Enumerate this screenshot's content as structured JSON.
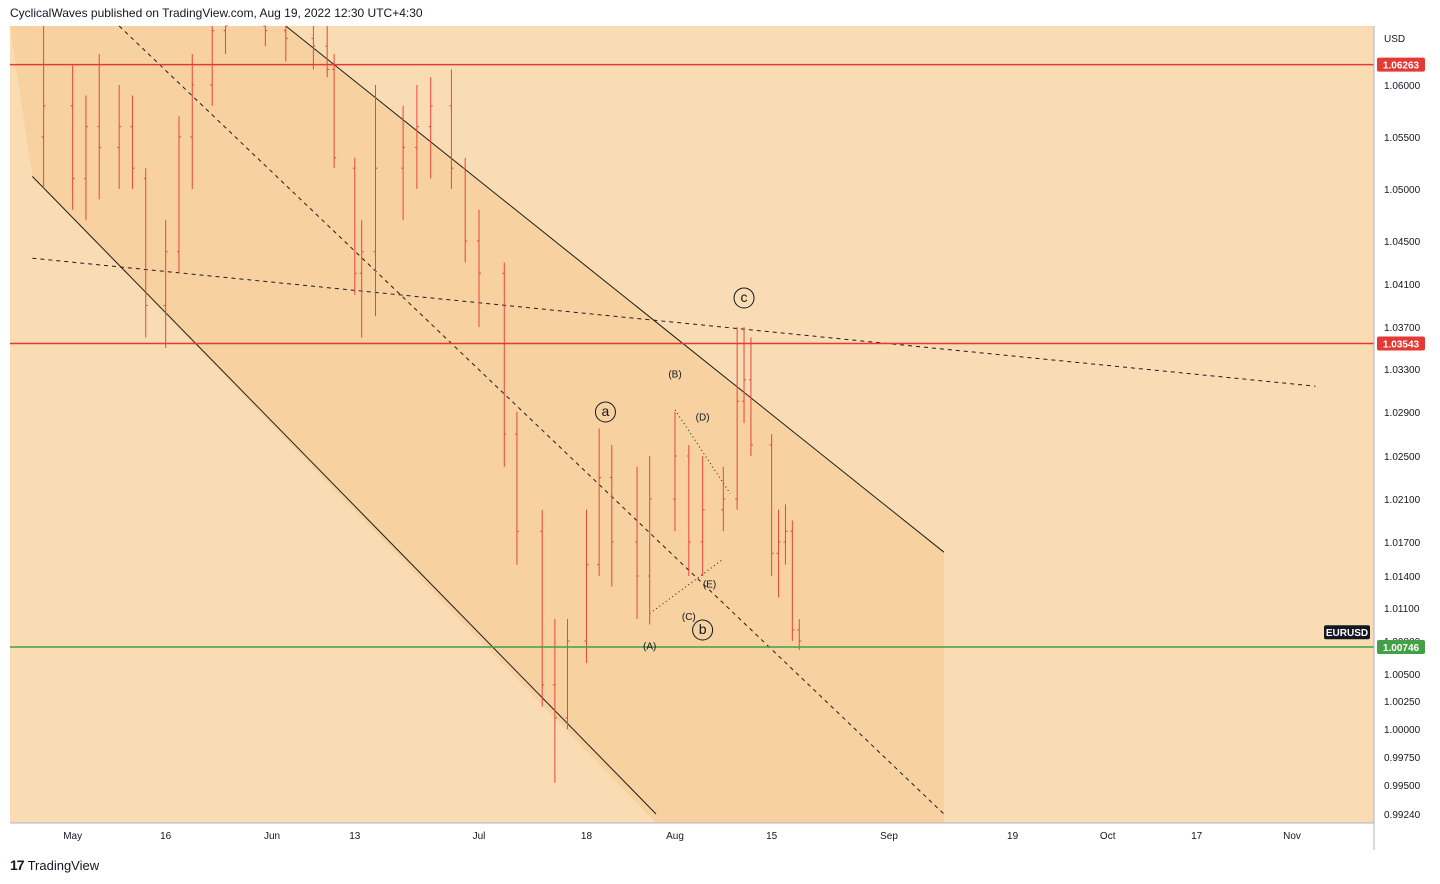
{
  "header": {
    "text": "CyclicalWaves published on TradingView.com, Aug 19, 2022 12:30 UTC+4:30"
  },
  "footer": {
    "logo": "17",
    "brand": "TradingView"
  },
  "colors": {
    "background": "#f9dcb3",
    "channel_fill": "#f6c98f",
    "candle": "#e8453c",
    "resistance": "#e53935",
    "support": "#43a047",
    "symbol_tag": "#131722"
  },
  "chart_data": {
    "type": "candlestick",
    "symbol": "EURUSD",
    "currency": "USD",
    "ylim": [
      0.9924,
      1.0676
    ],
    "grid": false,
    "x_ticks": [
      {
        "label": "May",
        "date": "2022-05-02"
      },
      {
        "label": "16",
        "date": "2022-05-16"
      },
      {
        "label": "Jun",
        "date": "2022-06-01"
      },
      {
        "label": "13",
        "date": "2022-06-13"
      },
      {
        "label": "Jul",
        "date": "2022-07-01"
      },
      {
        "label": "18",
        "date": "2022-07-18"
      },
      {
        "label": "Aug",
        "date": "2022-08-01"
      },
      {
        "label": "15",
        "date": "2022-08-15"
      },
      {
        "label": "Sep",
        "date": "2022-09-01"
      },
      {
        "label": "19",
        "date": "2022-09-19"
      },
      {
        "label": "Oct",
        "date": "2022-10-03"
      },
      {
        "label": "17",
        "date": "2022-10-17"
      },
      {
        "label": "Nov",
        "date": "2022-11-01"
      }
    ],
    "y_ticks": [
      "1.06000",
      "1.05500",
      "1.05000",
      "1.04500",
      "1.04100",
      "1.03700",
      "1.03300",
      "1.02900",
      "1.02500",
      "1.02100",
      "1.01700",
      "1.01400",
      "1.01100",
      "1.00500",
      "1.00250",
      "1.00000",
      "0.99750",
      "0.99500",
      "0.99240"
    ],
    "horizontal_levels": [
      {
        "value": 1.06263,
        "label": "1.06263",
        "color": "#e53935"
      },
      {
        "value": 1.03543,
        "label": "1.03543",
        "color": "#e53935"
      },
      {
        "value": 1.00746,
        "label": "1.00746",
        "color": "#43a047"
      }
    ],
    "partial_tick": "1.00800",
    "waves": [
      {
        "label": "c",
        "circled": true,
        "date": "2022-08-11",
        "price": 1.0397
      },
      {
        "label": "a",
        "circled": true,
        "date": "2022-07-21",
        "price": 1.029
      },
      {
        "label": "b",
        "circled": true,
        "date": "2022-08-05",
        "price": 1.009
      },
      {
        "label": "(A)",
        "circled": false,
        "date": "2022-07-28",
        "price": 1.0075
      },
      {
        "label": "(B)",
        "circled": false,
        "date": "2022-08-01",
        "price": 1.0325
      },
      {
        "label": "(C)",
        "circled": false,
        "date": "2022-08-03",
        "price": 1.0102
      },
      {
        "label": "(D)",
        "circled": false,
        "date": "2022-08-05",
        "price": 1.0285
      },
      {
        "label": "(E)",
        "circled": false,
        "date": "2022-08-06",
        "price": 1.0132
      }
    ],
    "channel_lines": [
      {
        "from": {
          "date": "2022-04-28",
          "price": 1.0512
        },
        "to": {
          "date": "2022-07-29",
          "price": 0.9924
        }
      },
      {
        "from": {
          "date": "2022-06-03",
          "price": 1.0676
        },
        "to": {
          "date": "2022-09-09",
          "price": 1.0161
        }
      }
    ],
    "dashed_lines": [
      {
        "from": {
          "date": "2022-05-09",
          "price": 1.0676
        },
        "to": {
          "date": "2022-09-09",
          "price": 0.9924
        }
      },
      {
        "from": {
          "date": "2022-04-28",
          "price": 1.0434
        },
        "to": {
          "date": "2022-11-05",
          "price": 1.0314
        }
      }
    ],
    "candles": [
      {
        "date": "2022-04-29",
        "open": 1.055,
        "high": 1.0676,
        "low": 1.05,
        "close": 1.058
      },
      {
        "date": "2022-05-02",
        "open": 1.058,
        "high": 1.0625,
        "low": 1.048,
        "close": 1.051
      },
      {
        "date": "2022-05-04",
        "open": 1.051,
        "high": 1.059,
        "low": 1.047,
        "close": 1.056
      },
      {
        "date": "2022-05-06",
        "open": 1.056,
        "high": 1.064,
        "low": 1.049,
        "close": 1.054
      },
      {
        "date": "2022-05-09",
        "open": 1.054,
        "high": 1.06,
        "low": 1.05,
        "close": 1.056
      },
      {
        "date": "2022-05-11",
        "open": 1.056,
        "high": 1.059,
        "low": 1.05,
        "close": 1.052
      },
      {
        "date": "2022-05-13",
        "open": 1.051,
        "high": 1.052,
        "low": 1.036,
        "close": 1.039
      },
      {
        "date": "2022-05-16",
        "open": 1.039,
        "high": 1.047,
        "low": 1.035,
        "close": 1.044
      },
      {
        "date": "2022-05-18",
        "open": 1.044,
        "high": 1.057,
        "low": 1.042,
        "close": 1.055
      },
      {
        "date": "2022-05-20",
        "open": 1.055,
        "high": 1.064,
        "low": 1.05,
        "close": 1.06
      },
      {
        "date": "2022-05-23",
        "open": 1.06,
        "high": 1.0676,
        "low": 1.058,
        "close": 1.067
      },
      {
        "date": "2022-05-25",
        "open": 1.067,
        "high": 1.0676,
        "low": 1.064,
        "close": 1.0676
      },
      {
        "date": "2022-05-31",
        "open": 1.0676,
        "high": 1.0676,
        "low": 1.065,
        "close": 1.067
      },
      {
        "date": "2022-06-03",
        "open": 1.067,
        "high": 1.0676,
        "low": 1.063,
        "close": 1.066
      },
      {
        "date": "2022-06-07",
        "open": 1.066,
        "high": 1.0676,
        "low": 1.062,
        "close": 1.065
      },
      {
        "date": "2022-06-09",
        "open": 1.065,
        "high": 1.0676,
        "low": 1.061,
        "close": 1.062
      },
      {
        "date": "2022-06-10",
        "open": 1.062,
        "high": 1.064,
        "low": 1.052,
        "close": 1.053
      },
      {
        "date": "2022-06-13",
        "open": 1.052,
        "high": 1.053,
        "low": 1.04,
        "close": 1.042
      },
      {
        "date": "2022-06-14",
        "open": 1.042,
        "high": 1.047,
        "low": 1.036,
        "close": 1.044
      },
      {
        "date": "2022-06-16",
        "open": 1.044,
        "high": 1.06,
        "low": 1.038,
        "close": 1.052
      },
      {
        "date": "2022-06-20",
        "open": 1.052,
        "high": 1.058,
        "low": 1.047,
        "close": 1.054
      },
      {
        "date": "2022-06-22",
        "open": 1.054,
        "high": 1.06,
        "low": 1.05,
        "close": 1.056
      },
      {
        "date": "2022-06-24",
        "open": 1.056,
        "high": 1.061,
        "low": 1.051,
        "close": 1.058
      },
      {
        "date": "2022-06-27",
        "open": 1.058,
        "high": 1.062,
        "low": 1.05,
        "close": 1.052
      },
      {
        "date": "2022-06-29",
        "open": 1.052,
        "high": 1.053,
        "low": 1.043,
        "close": 1.045
      },
      {
        "date": "2022-07-01",
        "open": 1.045,
        "high": 1.048,
        "low": 1.037,
        "close": 1.042
      },
      {
        "date": "2022-07-05",
        "open": 1.042,
        "high": 1.043,
        "low": 1.024,
        "close": 1.027
      },
      {
        "date": "2022-07-07",
        "open": 1.027,
        "high": 1.029,
        "low": 1.015,
        "close": 1.018
      },
      {
        "date": "2022-07-11",
        "open": 1.018,
        "high": 1.02,
        "low": 1.002,
        "close": 1.004
      },
      {
        "date": "2022-07-13",
        "open": 1.004,
        "high": 1.01,
        "low": 0.9952,
        "close": 1.001
      },
      {
        "date": "2022-07-15",
        "open": 1.001,
        "high": 1.01,
        "low": 1.0,
        "close": 1.008
      },
      {
        "date": "2022-07-18",
        "open": 1.008,
        "high": 1.02,
        "low": 1.006,
        "close": 1.015
      },
      {
        "date": "2022-07-20",
        "open": 1.015,
        "high": 1.0275,
        "low": 1.014,
        "close": 1.023
      },
      {
        "date": "2022-07-22",
        "open": 1.023,
        "high": 1.026,
        "low": 1.013,
        "close": 1.017
      },
      {
        "date": "2022-07-26",
        "open": 1.017,
        "high": 1.024,
        "low": 1.01,
        "close": 1.014
      },
      {
        "date": "2022-07-28",
        "open": 1.014,
        "high": 1.025,
        "low": 1.0095,
        "close": 1.021
      },
      {
        "date": "2022-08-01",
        "open": 1.021,
        "high": 1.029,
        "low": 1.018,
        "close": 1.025
      },
      {
        "date": "2022-08-03",
        "open": 1.025,
        "high": 1.026,
        "low": 1.014,
        "close": 1.017
      },
      {
        "date": "2022-08-05",
        "open": 1.017,
        "high": 1.025,
        "low": 1.014,
        "close": 1.02
      },
      {
        "date": "2022-08-08",
        "open": 1.02,
        "high": 1.024,
        "low": 1.018,
        "close": 1.021
      },
      {
        "date": "2022-08-10",
        "open": 1.021,
        "high": 1.037,
        "low": 1.02,
        "close": 1.03
      },
      {
        "date": "2022-08-11",
        "open": 1.03,
        "high": 1.037,
        "low": 1.028,
        "close": 1.032
      },
      {
        "date": "2022-08-12",
        "open": 1.032,
        "high": 1.036,
        "low": 1.025,
        "close": 1.026
      },
      {
        "date": "2022-08-15",
        "open": 1.026,
        "high": 1.027,
        "low": 1.014,
        "close": 1.016
      },
      {
        "date": "2022-08-16",
        "open": 1.016,
        "high": 1.02,
        "low": 1.012,
        "close": 1.017
      },
      {
        "date": "2022-08-17",
        "open": 1.017,
        "high": 1.0205,
        "low": 1.015,
        "close": 1.018
      },
      {
        "date": "2022-08-18",
        "open": 1.018,
        "high": 1.019,
        "low": 1.008,
        "close": 1.009
      },
      {
        "date": "2022-08-19",
        "open": 1.009,
        "high": 1.01,
        "low": 1.0072,
        "close": 1.008
      }
    ]
  }
}
